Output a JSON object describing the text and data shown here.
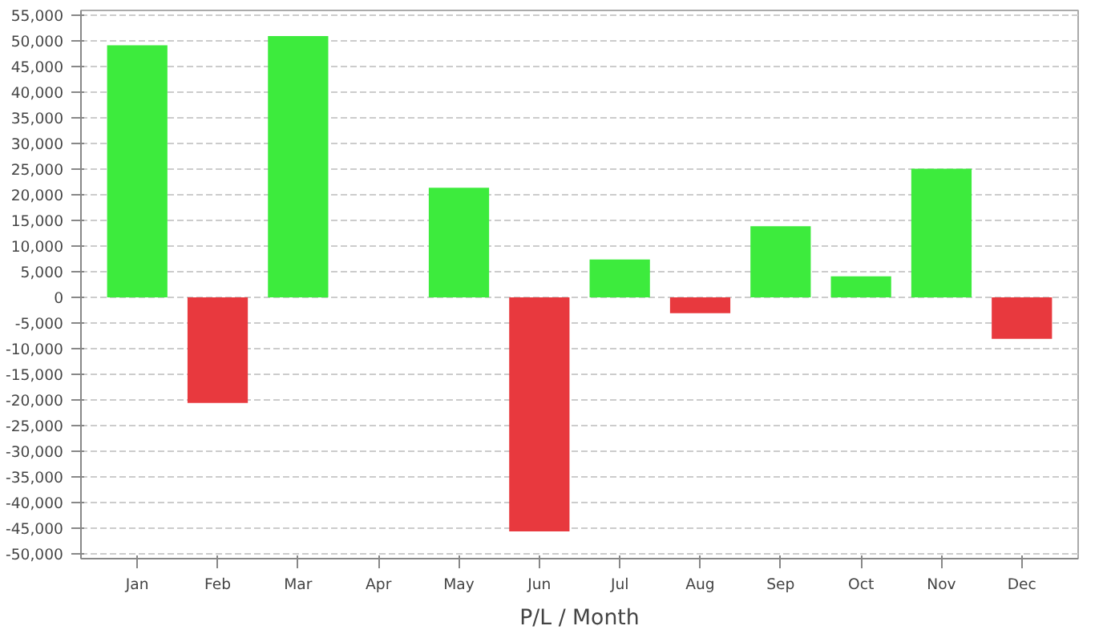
{
  "chart_data": {
    "type": "bar",
    "xlabel": "P/L / Month",
    "categories": [
      "Jan",
      "Feb",
      "Mar",
      "Apr",
      "May",
      "Jun",
      "Jul",
      "Aug",
      "Sep",
      "Oct",
      "Nov",
      "Dec"
    ],
    "values": [
      49200,
      -20600,
      51000,
      0,
      21400,
      -45700,
      7400,
      -3100,
      13900,
      4100,
      25100,
      -8100
    ],
    "colors": [
      "#3deb3d",
      "#e8393e",
      "#3deb3d",
      "#3deb3d",
      "#3deb3d",
      "#e8393e",
      "#3deb3d",
      "#e8393e",
      "#3deb3d",
      "#3deb3d",
      "#3deb3d",
      "#e8393e"
    ],
    "ylim": [
      -51000,
      56000
    ],
    "yticks": [
      {
        "value": -50000,
        "label": "-50,000"
      },
      {
        "value": -45000,
        "label": "-45,000"
      },
      {
        "value": -40000,
        "label": "-40,000"
      },
      {
        "value": -35000,
        "label": "-35,000"
      },
      {
        "value": -30000,
        "label": "-30,000"
      },
      {
        "value": -25000,
        "label": "-25,000"
      },
      {
        "value": -20000,
        "label": "-20,000"
      },
      {
        "value": -15000,
        "label": "-15,000"
      },
      {
        "value": -10000,
        "label": "-10,000"
      },
      {
        "value": -5000,
        "label": "-5,000"
      },
      0,
      {
        "value": 5000,
        "label": "5,000"
      },
      {
        "value": 10000,
        "label": "10,000"
      },
      {
        "value": 15000,
        "label": "15,000"
      },
      {
        "value": 20000,
        "label": "20,000"
      },
      {
        "value": 25000,
        "label": "25,000"
      },
      {
        "value": 30000,
        "label": "30,000"
      },
      {
        "value": 35000,
        "label": "35,000"
      },
      {
        "value": 40000,
        "label": "40,000"
      },
      {
        "value": 45000,
        "label": "45,000"
      },
      {
        "value": 50000,
        "label": "50,000"
      },
      {
        "value": 55000,
        "label": "55,000"
      }
    ],
    "grid": "y"
  }
}
